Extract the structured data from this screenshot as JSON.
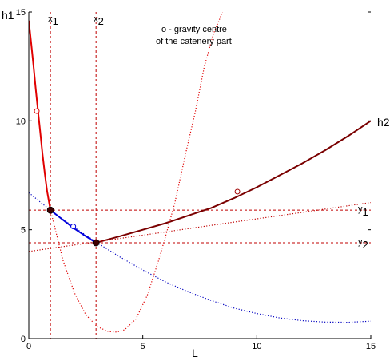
{
  "chart_data": {
    "type": "line",
    "title": "",
    "xlabel": "L",
    "ylabel_left": "h1",
    "ylabel_right": "h2",
    "xlim": [
      0,
      15
    ],
    "ylim": [
      0,
      15
    ],
    "xticks": [
      0,
      5,
      10,
      15
    ],
    "yticks": [
      0,
      5,
      10,
      15
    ],
    "grid": false,
    "annotation_lines": [
      "o - gravity centre",
      "of the catenery part"
    ],
    "vertical_markers": [
      {
        "label": "x",
        "sub": "1",
        "x": 0.95
      },
      {
        "label": "x",
        "sub": "2",
        "x": 2.95
      }
    ],
    "horizontal_markers": [
      {
        "label": "y",
        "sub": "1",
        "y": 5.9
      },
      {
        "label": "y",
        "sub": "2",
        "y": 4.4
      }
    ],
    "colors": {
      "red_segment": "#e00000",
      "blue_segment": "#0000e0",
      "dark_segment": "#7a0000",
      "dotted_red": "#e00000",
      "dotted_blue": "#0000c0",
      "marker_line": "#c00000"
    },
    "series": [
      {
        "style": "solid",
        "color": "#e00000",
        "x": [
          0,
          0.1,
          0.2,
          0.3,
          0.4,
          0.5,
          0.6,
          0.7,
          0.8,
          0.95
        ],
        "y": [
          14.6,
          13.6,
          12.6,
          11.5,
          10.5,
          9.5,
          8.5,
          7.6,
          6.8,
          5.9
        ]
      },
      {
        "style": "solid",
        "color": "#0000e0",
        "x": [
          0.95,
          1.5,
          2.0,
          2.5,
          2.95
        ],
        "y": [
          5.9,
          5.45,
          5.05,
          4.7,
          4.4
        ]
      },
      {
        "style": "solid",
        "color": "#7a0000",
        "x": [
          2.95,
          4,
          5,
          6,
          7,
          8,
          9,
          10,
          11,
          12,
          13,
          14,
          15
        ],
        "y": [
          4.4,
          4.7,
          5.0,
          5.3,
          5.65,
          6.0,
          6.45,
          6.95,
          7.5,
          8.05,
          8.65,
          9.3,
          10.0
        ]
      },
      {
        "style": "dotted",
        "color": "#e00000",
        "x": [
          0.95,
          1.5,
          2.0,
          2.5,
          3.0,
          3.5,
          3.85,
          4.2,
          4.7,
          5.2,
          5.7,
          6.0,
          6.4,
          6.9,
          7.3,
          7.7,
          8.1,
          8.5
        ],
        "y": [
          5.9,
          3.6,
          2.1,
          1.1,
          0.55,
          0.32,
          0.3,
          0.4,
          0.9,
          2.0,
          3.6,
          4.7,
          6.2,
          8.6,
          10.4,
          12.5,
          14.0,
          15.0
        ]
      },
      {
        "style": "dotted",
        "color": "#0000c0",
        "x": [
          0,
          1,
          2,
          3,
          4,
          5,
          6,
          7,
          8,
          9,
          10,
          11,
          12,
          13,
          14,
          15
        ],
        "y": [
          6.7,
          5.85,
          5.1,
          4.4,
          3.75,
          3.15,
          2.6,
          2.15,
          1.75,
          1.4,
          1.15,
          0.95,
          0.82,
          0.76,
          0.75,
          0.8
        ]
      },
      {
        "style": "dotted",
        "color": "#c00000",
        "x": [
          0,
          3,
          6,
          9,
          12,
          15
        ],
        "y": [
          4.0,
          4.45,
          4.9,
          5.35,
          5.8,
          6.25
        ]
      }
    ],
    "points": [
      {
        "marker": "filled",
        "color": "#400000",
        "x": 0.95,
        "y": 5.9
      },
      {
        "marker": "filled",
        "color": "#400000",
        "x": 2.95,
        "y": 4.4
      },
      {
        "marker": "open",
        "color": "#e00000",
        "x": 0.35,
        "y": 10.45
      },
      {
        "marker": "open",
        "color": "#0000e0",
        "x": 1.95,
        "y": 5.15
      },
      {
        "marker": "open",
        "color": "#a00000",
        "x": 9.15,
        "y": 6.75
      }
    ]
  }
}
